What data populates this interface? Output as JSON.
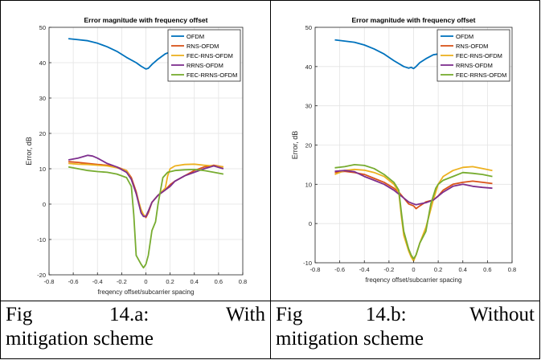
{
  "chart_data": [
    {
      "type": "line",
      "title": "Error magnitude with frequency offset",
      "xlabel": "freqency offset/subcarrier spacing",
      "ylabel": "Error, dB",
      "xlim": [
        -0.8,
        0.8
      ],
      "ylim": [
        -20,
        50
      ],
      "xticks": [
        -0.8,
        -0.6,
        -0.4,
        -0.2,
        0,
        0.2,
        0.4,
        0.6,
        0.8
      ],
      "yticks": [
        -20,
        -10,
        0,
        10,
        20,
        30,
        40,
        50
      ],
      "xtick_labels": [
        "-0.8",
        "-0.6",
        "-0.4",
        "-0.2",
        "0",
        "0.2",
        "0.4",
        "0.6",
        "0.8"
      ],
      "ytick_labels": [
        "-20",
        "-10",
        "0",
        "10",
        "20",
        "30",
        "40",
        "50"
      ],
      "grid": true,
      "legend_position": "top-right",
      "series": [
        {
          "name": "OFDM",
          "color": "#0072BD",
          "x": [
            -0.64,
            -0.56,
            -0.48,
            -0.4,
            -0.32,
            -0.24,
            -0.16,
            -0.08,
            -0.04,
            0.0,
            0.02,
            0.05,
            0.1,
            0.16,
            0.2
          ],
          "y": [
            46.8,
            46.5,
            46.2,
            45.5,
            44.5,
            43.2,
            41.5,
            40.0,
            39.0,
            38.2,
            38.4,
            39.5,
            41.0,
            42.5,
            43.0
          ]
        },
        {
          "name": "RNS-OFDM",
          "color": "#D95319",
          "x": [
            -0.64,
            -0.56,
            -0.48,
            -0.4,
            -0.32,
            -0.24,
            -0.16,
            -0.12,
            -0.08,
            -0.04,
            -0.02,
            0.0,
            0.02,
            0.05,
            0.1,
            0.16,
            0.2,
            0.24,
            0.32,
            0.4,
            0.48,
            0.56,
            0.64
          ],
          "y": [
            12.0,
            11.8,
            11.5,
            11.2,
            11.0,
            10.5,
            9.5,
            7.5,
            3.5,
            -2.0,
            -3.0,
            -3.8,
            -2.5,
            0.5,
            2.5,
            4.0,
            5.5,
            6.5,
            8.0,
            9.5,
            10.5,
            11.0,
            10.5
          ]
        },
        {
          "name": "FEC-RNS-OFDM",
          "color": "#EDB120",
          "x": [
            -0.64,
            -0.56,
            -0.48,
            -0.4,
            -0.32,
            -0.24,
            -0.16,
            -0.12,
            -0.08,
            -0.04,
            -0.02,
            0.0,
            0.02,
            0.05,
            0.1,
            0.16,
            0.18,
            0.2,
            0.24,
            0.32,
            0.4,
            0.48,
            0.56,
            0.64
          ],
          "y": [
            11.5,
            11.3,
            11.2,
            11.0,
            10.8,
            10.3,
            9.5,
            7.0,
            3.0,
            -1.5,
            -3.0,
            -3.5,
            -2.0,
            0.5,
            2.5,
            4.5,
            8.0,
            10.0,
            10.8,
            11.2,
            11.3,
            11.0,
            10.8,
            10.5
          ]
        },
        {
          "name": "RRNS-OFDM",
          "color": "#7E2F8E",
          "x": [
            -0.64,
            -0.56,
            -0.48,
            -0.44,
            -0.4,
            -0.32,
            -0.24,
            -0.16,
            -0.12,
            -0.08,
            -0.04,
            -0.02,
            0.0,
            0.02,
            0.05,
            0.1,
            0.16,
            0.2,
            0.24,
            0.32,
            0.4,
            0.48,
            0.56,
            0.64
          ],
          "y": [
            12.5,
            13.0,
            13.8,
            13.6,
            13.0,
            11.5,
            10.5,
            9.0,
            7.0,
            3.0,
            -2.5,
            -3.5,
            -3.5,
            -2.0,
            0.5,
            2.5,
            4.0,
            5.0,
            6.5,
            8.0,
            9.0,
            10.0,
            10.8,
            10.0
          ]
        },
        {
          "name": "FEC-RRNS-OFDM",
          "color": "#77AC30",
          "x": [
            -0.64,
            -0.56,
            -0.48,
            -0.4,
            -0.32,
            -0.24,
            -0.16,
            -0.12,
            -0.1,
            -0.08,
            -0.04,
            -0.02,
            0.0,
            0.02,
            0.05,
            0.08,
            0.1,
            0.14,
            0.18,
            0.24,
            0.32,
            0.4,
            0.48,
            0.56,
            0.64
          ],
          "y": [
            10.5,
            10.0,
            9.5,
            9.2,
            9.0,
            8.5,
            7.5,
            5.0,
            -3.0,
            -14.5,
            -17.0,
            -18.0,
            -17.0,
            -14.5,
            -7.5,
            -5.0,
            0.0,
            7.5,
            9.0,
            9.5,
            9.7,
            9.8,
            9.5,
            9.0,
            8.5
          ]
        }
      ]
    },
    {
      "type": "line",
      "title": "Error magnitude with frequency offset",
      "xlabel": "freqency offset/subcarrier spacing",
      "ylabel": "Error, dB",
      "xlim": [
        -0.8,
        0.8
      ],
      "ylim": [
        -10,
        50
      ],
      "xticks": [
        -0.8,
        -0.6,
        -0.4,
        -0.2,
        0,
        0.2,
        0.4,
        0.6,
        0.8
      ],
      "yticks": [
        -10,
        0,
        10,
        20,
        30,
        40,
        50
      ],
      "xtick_labels": [
        "-0.8",
        "-0.6",
        "-0.4",
        "-0.2",
        "0",
        "0.2",
        "0.4",
        "0.6",
        "0.8"
      ],
      "ytick_labels": [
        "-10",
        "0",
        "10",
        "20",
        "30",
        "40",
        "50"
      ],
      "grid": true,
      "legend_position": "top-right",
      "series": [
        {
          "name": "OFDM",
          "color": "#0072BD",
          "x": [
            -0.64,
            -0.56,
            -0.48,
            -0.4,
            -0.32,
            -0.24,
            -0.16,
            -0.08,
            -0.04,
            -0.02,
            0.0,
            0.02,
            0.05,
            0.1,
            0.16,
            0.2
          ],
          "y": [
            46.8,
            46.5,
            46.2,
            45.5,
            44.5,
            43.2,
            41.5,
            40.0,
            39.6,
            39.8,
            39.5,
            40.0,
            41.0,
            42.0,
            43.0,
            43.2
          ]
        },
        {
          "name": "RNS-OFDM",
          "color": "#D95319",
          "x": [
            -0.64,
            -0.56,
            -0.48,
            -0.4,
            -0.32,
            -0.24,
            -0.16,
            -0.12,
            -0.08,
            -0.04,
            0.0,
            0.02,
            0.05,
            0.1,
            0.16,
            0.2,
            0.24,
            0.32,
            0.4,
            0.48,
            0.56,
            0.64
          ],
          "y": [
            13.0,
            13.3,
            13.0,
            12.5,
            11.5,
            10.5,
            9.0,
            8.0,
            6.5,
            5.0,
            4.5,
            3.8,
            4.5,
            5.5,
            6.0,
            7.0,
            8.5,
            10.0,
            10.5,
            10.8,
            10.5,
            10.2
          ]
        },
        {
          "name": "FEC-RNS-OFDM",
          "color": "#EDB120",
          "x": [
            -0.64,
            -0.56,
            -0.48,
            -0.4,
            -0.32,
            -0.24,
            -0.16,
            -0.12,
            -0.1,
            -0.08,
            -0.04,
            -0.02,
            0.0,
            0.02,
            0.05,
            0.1,
            0.16,
            0.2,
            0.24,
            0.32,
            0.4,
            0.48,
            0.56,
            0.64
          ],
          "y": [
            12.5,
            13.5,
            13.8,
            13.6,
            13.0,
            12.0,
            10.0,
            8.0,
            2.0,
            -3.0,
            -7.0,
            -8.5,
            -9.5,
            -8.0,
            -5.0,
            -1.0,
            6.0,
            10.0,
            12.0,
            13.5,
            14.3,
            14.5,
            14.0,
            13.5
          ]
        },
        {
          "name": "RRNS-OFDM",
          "color": "#7E2F8E",
          "x": [
            -0.64,
            -0.56,
            -0.48,
            -0.4,
            -0.32,
            -0.24,
            -0.16,
            -0.12,
            -0.08,
            -0.04,
            0.0,
            0.02,
            0.05,
            0.1,
            0.16,
            0.2,
            0.24,
            0.32,
            0.4,
            0.48,
            0.56,
            0.64
          ],
          "y": [
            13.3,
            13.5,
            13.2,
            12.0,
            11.0,
            10.0,
            8.5,
            7.5,
            6.5,
            5.5,
            5.0,
            4.8,
            5.0,
            5.3,
            6.0,
            7.0,
            8.0,
            9.5,
            10.0,
            9.5,
            9.2,
            9.0
          ]
        },
        {
          "name": "FEC-RRNS-OFDM",
          "color": "#77AC30",
          "x": [
            -0.64,
            -0.56,
            -0.48,
            -0.4,
            -0.32,
            -0.24,
            -0.16,
            -0.12,
            -0.1,
            -0.08,
            -0.04,
            -0.02,
            0.0,
            0.02,
            0.05,
            0.1,
            0.14,
            0.18,
            0.2,
            0.24,
            0.32,
            0.4,
            0.48,
            0.56,
            0.64
          ],
          "y": [
            14.2,
            14.5,
            15.0,
            14.8,
            14.0,
            12.5,
            10.5,
            8.5,
            3.0,
            -2.0,
            -6.5,
            -8.0,
            -9.0,
            -8.0,
            -5.0,
            -2.0,
            5.0,
            9.0,
            10.0,
            11.0,
            12.0,
            13.0,
            12.8,
            12.5,
            12.0
          ]
        }
      ]
    }
  ],
  "captions": [
    {
      "w1": "Fig",
      "w2": "14.a:",
      "w3": "With",
      "line2": "mitigation scheme"
    },
    {
      "w1": "Fig",
      "w2": "14.b:",
      "w3": "Without",
      "line2": "mitigation scheme"
    }
  ]
}
